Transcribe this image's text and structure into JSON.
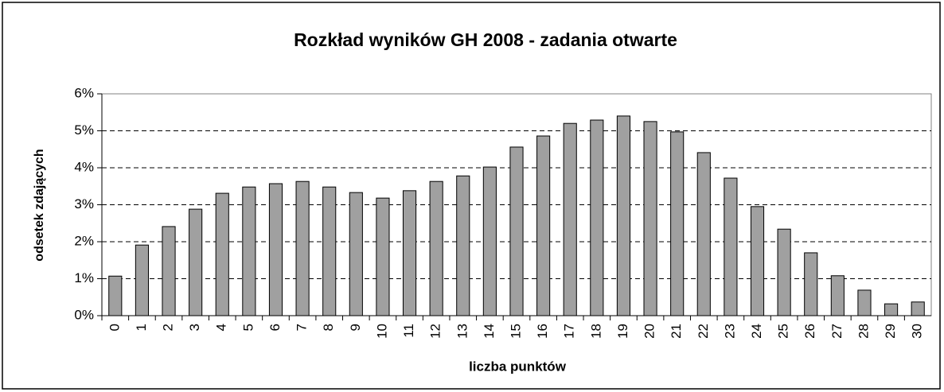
{
  "chart_data": {
    "type": "bar",
    "title": "Rozkład wyników GH 2008 - zadania otwarte",
    "x_label": "liczba punktów",
    "y_label": "odsetek zdających",
    "categories": [
      "0",
      "1",
      "2",
      "3",
      "4",
      "5",
      "6",
      "7",
      "8",
      "9",
      "10",
      "11",
      "12",
      "13",
      "14",
      "15",
      "16",
      "17",
      "18",
      "19",
      "20",
      "21",
      "22",
      "23",
      "24",
      "25",
      "26",
      "27",
      "28",
      "29",
      "30"
    ],
    "values": [
      1.07,
      1.91,
      2.41,
      2.88,
      3.31,
      3.48,
      3.57,
      3.63,
      3.48,
      3.33,
      3.18,
      3.38,
      3.63,
      3.78,
      4.02,
      4.56,
      4.86,
      5.2,
      5.29,
      5.4,
      5.25,
      4.97,
      4.41,
      3.72,
      2.95,
      2.34,
      1.7,
      1.08,
      0.69,
      0.32,
      0.37
    ],
    "color": "#a0a0a0",
    "ylim": [
      0,
      6
    ],
    "yticks": [
      {
        "value": 0,
        "label": "0%"
      },
      {
        "value": 1,
        "label": "1%"
      },
      {
        "value": 2,
        "label": "2%"
      },
      {
        "value": 3,
        "label": "3%"
      },
      {
        "value": 4,
        "label": "4%"
      },
      {
        "value": 5,
        "label": "5%"
      },
      {
        "value": 6,
        "label": "6%"
      }
    ],
    "grid": true
  }
}
